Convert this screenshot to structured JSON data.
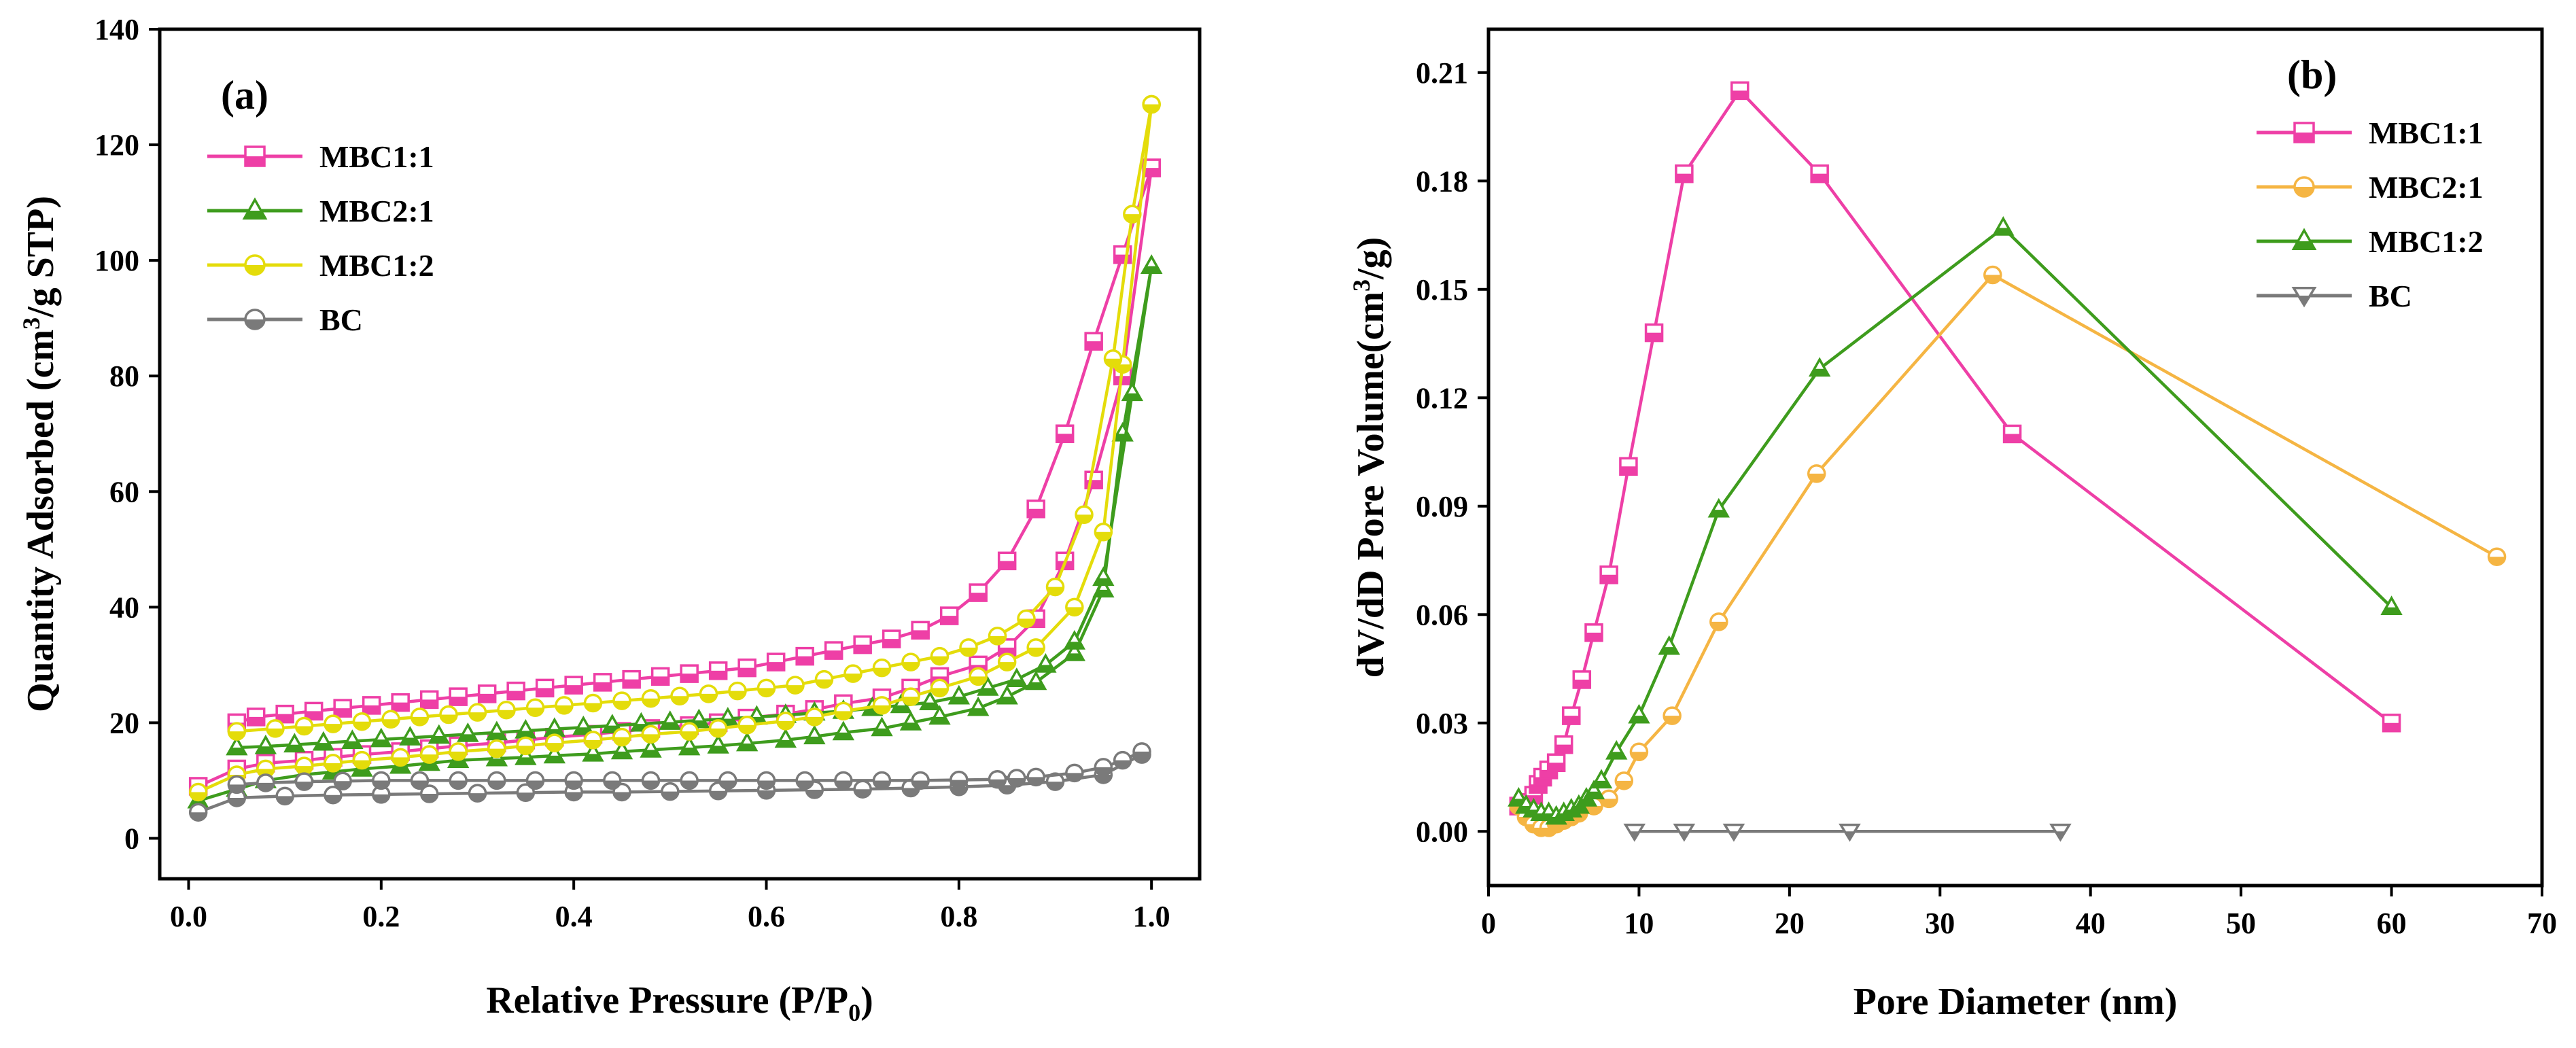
{
  "figure_description": "",
  "chart_data": [
    {
      "id": "a",
      "type": "line",
      "panel_label": "(a)",
      "xlabel": "Relative Pressure (P/P",
      "xlabel_sub": "0",
      "xlabel_close": ")",
      "ylabel": "Quantity Adsorbed (cm",
      "ylabel_sup": "3",
      "ylabel_close": "/g STP)",
      "xlim": [
        -0.03,
        1.05
      ],
      "ylim": [
        -7,
        140
      ],
      "xticks": [
        0.0,
        0.2,
        0.4,
        0.6,
        0.8,
        1.0
      ],
      "xtick_labels": [
        "0.0",
        "0.2",
        "0.4",
        "0.6",
        "0.8",
        "1.0"
      ],
      "yticks": [
        0,
        20,
        40,
        60,
        80,
        100,
        120,
        140
      ],
      "ytick_labels": [
        "0",
        "20",
        "40",
        "60",
        "80",
        "100",
        "120",
        "140"
      ],
      "grid": false,
      "legend_position": "top-left",
      "series": [
        {
          "name": "MBC1:1",
          "color": "#ee3fa6",
          "marker": "square",
          "adsorption": {
            "x": [
              0.01,
              0.05,
              0.08,
              0.12,
              0.15,
              0.18,
              0.22,
              0.25,
              0.28,
              0.32,
              0.35,
              0.38,
              0.42,
              0.45,
              0.48,
              0.52,
              0.55,
              0.58,
              0.62,
              0.65,
              0.68,
              0.72,
              0.75,
              0.78,
              0.82,
              0.85,
              0.88,
              0.91,
              0.94,
              0.97,
              1.0
            ],
            "y": [
              9,
              12,
              13,
              13.5,
              14,
              14.5,
              15,
              15.5,
              16,
              16.5,
              17,
              17.5,
              18,
              18.5,
              19,
              19.5,
              20,
              20.8,
              21.5,
              22.3,
              23.3,
              24.3,
              26,
              28,
              30,
              33,
              38,
              48,
              62,
              80,
              116
            ]
          },
          "desorption": {
            "x": [
              1.0,
              0.97,
              0.94,
              0.91,
              0.88,
              0.85,
              0.82,
              0.79,
              0.76,
              0.73,
              0.7,
              0.67,
              0.64,
              0.61,
              0.58,
              0.55,
              0.52,
              0.49,
              0.46,
              0.43,
              0.4,
              0.37,
              0.34,
              0.31,
              0.28,
              0.25,
              0.22,
              0.19,
              0.16,
              0.13,
              0.1,
              0.07,
              0.05
            ],
            "y": [
              116,
              101,
              86,
              70,
              57,
              48,
              42.5,
              38.5,
              36,
              34.5,
              33.5,
              32.5,
              31.5,
              30.5,
              29.5,
              29,
              28.5,
              28,
              27.5,
              27,
              26.5,
              26,
              25.5,
              25,
              24.5,
              24,
              23.5,
              23,
              22.5,
              22,
              21.5,
              21,
              20
            ]
          }
        },
        {
          "name": "MBC2:1",
          "color": "#3e9c1d",
          "marker": "triangle",
          "adsorption": {
            "x": [
              0.01,
              0.05,
              0.08,
              0.12,
              0.15,
              0.18,
              0.22,
              0.25,
              0.28,
              0.32,
              0.35,
              0.38,
              0.42,
              0.45,
              0.48,
              0.52,
              0.55,
              0.58,
              0.62,
              0.65,
              0.68,
              0.72,
              0.75,
              0.78,
              0.82,
              0.85,
              0.88,
              0.92,
              0.95,
              0.97,
              1.0
            ],
            "y": [
              6.5,
              8.5,
              10,
              11,
              11.5,
              12,
              12.5,
              13,
              13.5,
              13.8,
              14,
              14.3,
              14.6,
              15,
              15.3,
              15.7,
              16,
              16.4,
              17,
              17.6,
              18.3,
              19,
              20,
              21,
              22.5,
              24.5,
              27,
              32,
              43,
              70,
              99
            ]
          },
          "desorption": {
            "x": [
              1.0,
              0.98,
              0.95,
              0.92,
              0.89,
              0.86,
              0.83,
              0.8,
              0.77,
              0.74,
              0.71,
              0.68,
              0.65,
              0.62,
              0.59,
              0.56,
              0.53,
              0.5,
              0.47,
              0.44,
              0.41,
              0.38,
              0.35,
              0.32,
              0.29,
              0.26,
              0.23,
              0.2,
              0.17,
              0.14,
              0.11,
              0.08,
              0.05
            ],
            "y": [
              99,
              77,
              45,
              34,
              30,
              27.5,
              26,
              24.5,
              23.5,
              23,
              22.5,
              22,
              21.7,
              21.3,
              21,
              20.7,
              20.4,
              20.1,
              19.8,
              19.5,
              19.2,
              18.9,
              18.6,
              18.3,
              18,
              17.7,
              17.4,
              17.1,
              16.8,
              16.5,
              16.2,
              15.9,
              15.7
            ]
          }
        },
        {
          "name": "MBC1:2",
          "color": "#e4dc0a",
          "marker": "circle",
          "adsorption": {
            "x": [
              0.01,
              0.05,
              0.08,
              0.12,
              0.15,
              0.18,
              0.22,
              0.25,
              0.28,
              0.32,
              0.35,
              0.38,
              0.42,
              0.45,
              0.48,
              0.52,
              0.55,
              0.58,
              0.62,
              0.65,
              0.68,
              0.72,
              0.75,
              0.78,
              0.82,
              0.85,
              0.88,
              0.92,
              0.95,
              0.97,
              1.0
            ],
            "y": [
              8,
              11,
              12,
              12.5,
              13,
              13.5,
              14,
              14.5,
              15,
              15.5,
              16,
              16.5,
              17,
              17.5,
              18,
              18.5,
              19,
              19.6,
              20.3,
              21,
              22,
              23,
              24.5,
              26,
              28,
              30.5,
              33,
              40,
              53,
              82,
              127
            ]
          },
          "desorption": {
            "x": [
              1.0,
              0.98,
              0.96,
              0.93,
              0.9,
              0.87,
              0.84,
              0.81,
              0.78,
              0.75,
              0.72,
              0.69,
              0.66,
              0.63,
              0.6,
              0.57,
              0.54,
              0.51,
              0.48,
              0.45,
              0.42,
              0.39,
              0.36,
              0.33,
              0.3,
              0.27,
              0.24,
              0.21,
              0.18,
              0.15,
              0.12,
              0.09,
              0.05
            ],
            "y": [
              127,
              108,
              83,
              56,
              43.5,
              38,
              35,
              33,
              31.5,
              30.5,
              29.5,
              28.5,
              27.5,
              26.5,
              26,
              25.5,
              25,
              24.6,
              24.2,
              23.8,
              23.4,
              23,
              22.6,
              22.2,
              21.8,
              21.4,
              21,
              20.6,
              20.2,
              19.8,
              19.4,
              19,
              18.5
            ]
          }
        },
        {
          "name": "BC",
          "color": "#7a7a7a",
          "marker": "circle",
          "adsorption": {
            "x": [
              0.01,
              0.05,
              0.1,
              0.15,
              0.2,
              0.25,
              0.3,
              0.35,
              0.4,
              0.45,
              0.5,
              0.55,
              0.6,
              0.65,
              0.7,
              0.75,
              0.8,
              0.85,
              0.9,
              0.95,
              0.99
            ],
            "y": [
              4.5,
              7,
              7.3,
              7.5,
              7.6,
              7.7,
              7.8,
              7.9,
              8,
              8,
              8.1,
              8.2,
              8.3,
              8.4,
              8.5,
              8.7,
              8.9,
              9.2,
              9.8,
              11,
              14.5
            ]
          },
          "desorption": {
            "x": [
              0.99,
              0.97,
              0.95,
              0.92,
              0.88,
              0.86,
              0.84,
              0.8,
              0.76,
              0.72,
              0.68,
              0.64,
              0.6,
              0.56,
              0.52,
              0.48,
              0.44,
              0.4,
              0.36,
              0.32,
              0.28,
              0.24,
              0.2,
              0.16,
              0.12,
              0.08,
              0.05
            ],
            "y": [
              15,
              13.5,
              12.3,
              11.3,
              10.6,
              10.4,
              10.2,
              10.1,
              10,
              10,
              10,
              10,
              10,
              10,
              10,
              10,
              10,
              10,
              10,
              10,
              10,
              10,
              10,
              9.9,
              9.8,
              9.6,
              9.3
            ]
          }
        }
      ]
    },
    {
      "id": "b",
      "type": "line",
      "panel_label": "(b)",
      "xlabel": "Pore Diameter (nm)",
      "ylabel": "dV/dD Pore Volume(cm",
      "ylabel_sup": "3",
      "ylabel_close": "/g)",
      "xlim": [
        0,
        70
      ],
      "ylim": [
        -0.015,
        0.222
      ],
      "xticks": [
        0,
        10,
        20,
        30,
        40,
        50,
        60,
        70
      ],
      "xtick_labels": [
        "0",
        "10",
        "20",
        "30",
        "40",
        "50",
        "60",
        "70"
      ],
      "yticks": [
        0,
        0.03,
        0.06,
        0.09,
        0.12,
        0.15,
        0.18,
        0.21
      ],
      "ytick_labels": [
        "0.00",
        "0.03",
        "0.06",
        "0.09",
        "0.12",
        "0.15",
        "0.18",
        "0.21"
      ],
      "grid": false,
      "legend_position": "top-right",
      "series": [
        {
          "name": "MBC1:1",
          "color": "#ee3fa6",
          "marker": "square",
          "x": [
            2,
            2.5,
            3,
            3.3,
            3.6,
            4,
            4.5,
            5,
            5.5,
            6.2,
            7,
            8,
            9.3,
            11,
            13,
            16.7,
            22,
            34.8,
            60
          ],
          "y": [
            0.007,
            0.008,
            0.01,
            0.013,
            0.015,
            0.017,
            0.019,
            0.024,
            0.032,
            0.042,
            0.055,
            0.071,
            0.101,
            0.138,
            0.182,
            0.205,
            0.182,
            0.11,
            0.03
          ]
        },
        {
          "name": "MBC2:1",
          "color": "#f5b543",
          "marker": "circle",
          "x": [
            2,
            2.5,
            3,
            3.5,
            4,
            4.5,
            5,
            5.5,
            6,
            7,
            8,
            9,
            10,
            12.2,
            15.3,
            21.8,
            33.5,
            67
          ],
          "y": [
            0.007,
            0.004,
            0.002,
            0.001,
            0.001,
            0.002,
            0.003,
            0.004,
            0.005,
            0.007,
            0.009,
            0.014,
            0.022,
            0.032,
            0.058,
            0.099,
            0.154,
            0.076
          ]
        },
        {
          "name": "MBC1:2",
          "color": "#3e9c1d",
          "marker": "triangle",
          "x": [
            2,
            2.5,
            3,
            3.5,
            4,
            4.5,
            5,
            5.5,
            6,
            6.5,
            7,
            7.5,
            8.5,
            10,
            12,
            15.3,
            22,
            34.2,
            60
          ],
          "y": [
            0.009,
            0.007,
            0.006,
            0.005,
            0.005,
            0.004,
            0.005,
            0.006,
            0.007,
            0.009,
            0.011,
            0.014,
            0.022,
            0.032,
            0.051,
            0.089,
            0.128,
            0.167,
            0.062
          ]
        },
        {
          "name": "BC",
          "color": "#7a7a7a",
          "marker": "triangle-down",
          "x": [
            9.7,
            13,
            16.3,
            24,
            38
          ],
          "y": [
            0.0,
            0.0,
            0.0,
            0.0,
            0.0
          ]
        }
      ]
    }
  ]
}
